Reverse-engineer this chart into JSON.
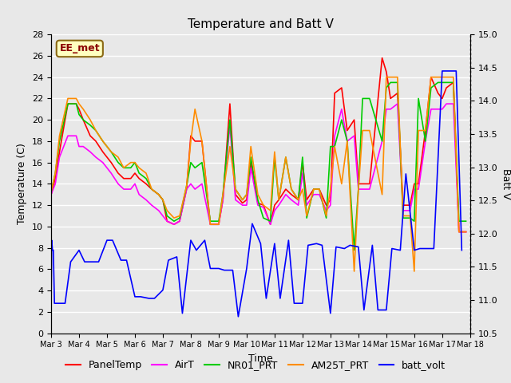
{
  "title": "Temperature and Batt V",
  "xlabel": "Time",
  "ylabel_left": "Temperature (C)",
  "ylabel_right": "Batt V",
  "annotation": "EE_met",
  "annotation_color": "#8B0000",
  "annotation_bg": "#FFFFC0",
  "annotation_border": "#8B6914",
  "xlim_days": [
    3,
    18
  ],
  "ylim_left": [
    0,
    28
  ],
  "ylim_right": [
    10.5,
    15.0
  ],
  "xtick_labels": [
    "Mar 3",
    "Mar 4",
    "Mar 5",
    "Mar 6",
    "Mar 7",
    "Mar 8",
    "Mar 9",
    "Mar 10",
    "Mar 11",
    "Mar 12",
    "Mar 13",
    "Mar 14",
    "Mar 15",
    "Mar 16",
    "Mar 17",
    "Mar 18"
  ],
  "xtick_positions": [
    3,
    4,
    5,
    6,
    7,
    8,
    9,
    10,
    11,
    12,
    13,
    14,
    15,
    16,
    17,
    18
  ],
  "yticks_left": [
    0,
    2,
    4,
    6,
    8,
    10,
    12,
    14,
    16,
    18,
    20,
    22,
    24,
    26,
    28
  ],
  "yticks_right": [
    10.5,
    11.0,
    11.5,
    12.0,
    12.5,
    13.0,
    13.5,
    14.0,
    14.5,
    15.0
  ],
  "series": {
    "PanelTemp": {
      "color": "#FF0000",
      "linewidth": 1.2,
      "x": [
        3.0,
        3.15,
        3.3,
        3.6,
        3.9,
        4.0,
        4.15,
        4.4,
        4.6,
        4.85,
        5.0,
        5.15,
        5.4,
        5.6,
        5.85,
        6.0,
        6.15,
        6.4,
        6.6,
        6.85,
        7.0,
        7.15,
        7.4,
        7.6,
        7.85,
        8.0,
        8.15,
        8.4,
        8.7,
        9.0,
        9.15,
        9.4,
        9.6,
        9.85,
        10.0,
        10.15,
        10.4,
        10.6,
        10.85,
        11.0,
        11.15,
        11.4,
        11.6,
        11.85,
        12.0,
        12.15,
        12.4,
        12.6,
        12.85,
        13.0,
        13.15,
        13.4,
        13.6,
        13.85,
        14.0,
        14.15,
        14.4,
        14.85,
        15.0,
        15.15,
        15.4,
        15.6,
        15.85,
        16.0,
        16.15,
        16.4,
        16.6,
        16.85,
        17.0,
        17.15,
        17.4,
        17.6,
        17.85
      ],
      "y": [
        13.0,
        14.5,
        17.0,
        21.5,
        21.5,
        21.0,
        20.0,
        18.5,
        18.0,
        17.0,
        16.5,
        16.0,
        15.0,
        14.5,
        14.5,
        15.0,
        14.5,
        14.0,
        13.5,
        13.0,
        12.5,
        10.5,
        10.2,
        10.5,
        13.5,
        18.5,
        18.0,
        18.0,
        10.2,
        10.2,
        12.5,
        21.5,
        13.0,
        12.2,
        12.5,
        16.0,
        12.2,
        12.0,
        10.2,
        12.0,
        12.5,
        13.5,
        13.0,
        12.5,
        16.0,
        12.5,
        13.5,
        13.5,
        12.0,
        12.5,
        22.5,
        23.0,
        19.0,
        20.0,
        14.0,
        14.0,
        14.0,
        25.8,
        24.5,
        22.0,
        22.5,
        12.0,
        12.0,
        14.0,
        14.0,
        19.0,
        24.0,
        22.5,
        22.0,
        23.0,
        23.5,
        9.5,
        9.5
      ]
    },
    "AirT": {
      "color": "#FF00FF",
      "linewidth": 1.2,
      "x": [
        3.0,
        3.15,
        3.3,
        3.6,
        3.9,
        4.0,
        4.15,
        4.4,
        4.6,
        4.85,
        5.0,
        5.15,
        5.4,
        5.6,
        5.85,
        6.0,
        6.15,
        6.4,
        6.6,
        6.85,
        7.0,
        7.15,
        7.4,
        7.6,
        7.85,
        8.0,
        8.15,
        8.4,
        8.7,
        9.0,
        9.15,
        9.4,
        9.6,
        9.85,
        10.0,
        10.15,
        10.4,
        10.6,
        10.85,
        11.0,
        11.15,
        11.4,
        11.6,
        11.85,
        12.0,
        12.15,
        12.4,
        12.6,
        12.85,
        13.0,
        13.15,
        13.4,
        13.6,
        13.85,
        14.0,
        14.15,
        14.4,
        14.85,
        15.0,
        15.15,
        15.4,
        15.6,
        15.85,
        16.0,
        16.15,
        16.4,
        16.6,
        16.85,
        17.0,
        17.15,
        17.4,
        17.6,
        17.85
      ],
      "y": [
        13.0,
        14.0,
        16.5,
        18.5,
        18.5,
        17.5,
        17.5,
        17.0,
        16.5,
        16.0,
        15.5,
        15.0,
        14.0,
        13.5,
        13.5,
        14.0,
        13.0,
        12.5,
        12.0,
        11.5,
        11.0,
        10.5,
        10.2,
        10.5,
        13.5,
        14.0,
        13.5,
        14.0,
        10.2,
        10.2,
        12.5,
        19.5,
        12.5,
        12.0,
        12.0,
        15.5,
        12.0,
        11.8,
        10.2,
        11.5,
        12.0,
        13.0,
        12.5,
        12.0,
        15.0,
        12.0,
        13.0,
        13.0,
        11.5,
        12.0,
        18.5,
        21.0,
        18.0,
        18.5,
        13.5,
        13.5,
        13.5,
        18.0,
        21.0,
        21.0,
        21.5,
        11.5,
        11.5,
        13.5,
        13.5,
        18.0,
        21.0,
        21.0,
        21.0,
        21.5,
        21.5,
        9.5,
        9.5
      ]
    },
    "NR01_PRT": {
      "color": "#00CC00",
      "linewidth": 1.2,
      "x": [
        3.0,
        3.15,
        3.3,
        3.6,
        3.9,
        4.0,
        4.15,
        4.4,
        4.6,
        4.85,
        5.0,
        5.15,
        5.4,
        5.6,
        5.85,
        6.0,
        6.15,
        6.4,
        6.6,
        6.85,
        7.0,
        7.15,
        7.4,
        7.6,
        7.85,
        8.0,
        8.15,
        8.4,
        8.7,
        9.0,
        9.15,
        9.4,
        9.6,
        9.85,
        10.0,
        10.15,
        10.4,
        10.6,
        10.85,
        11.0,
        11.15,
        11.4,
        11.6,
        11.85,
        12.0,
        12.15,
        12.4,
        12.6,
        12.85,
        13.0,
        13.15,
        13.4,
        13.6,
        13.85,
        14.0,
        14.15,
        14.4,
        14.85,
        15.0,
        15.15,
        15.4,
        15.6,
        15.85,
        16.0,
        16.15,
        16.4,
        16.6,
        16.85,
        17.0,
        17.15,
        17.4,
        17.6,
        17.85
      ],
      "y": [
        13.2,
        15.0,
        18.0,
        21.5,
        21.5,
        20.5,
        20.0,
        19.5,
        19.0,
        18.0,
        17.5,
        17.0,
        16.0,
        15.5,
        15.5,
        16.0,
        15.0,
        14.5,
        13.5,
        13.0,
        12.5,
        11.0,
        10.5,
        10.8,
        13.8,
        16.0,
        15.5,
        16.0,
        10.5,
        10.5,
        13.0,
        20.0,
        13.5,
        12.5,
        13.0,
        16.5,
        12.5,
        10.8,
        10.5,
        16.5,
        12.5,
        16.5,
        13.5,
        12.5,
        16.5,
        10.8,
        13.5,
        13.5,
        10.8,
        17.5,
        17.5,
        20.0,
        18.0,
        7.8,
        13.5,
        22.0,
        22.0,
        18.0,
        23.0,
        23.5,
        23.5,
        10.8,
        10.8,
        10.5,
        22.0,
        18.0,
        23.0,
        23.5,
        23.5,
        23.5,
        23.5,
        10.5,
        10.5
      ]
    },
    "AM25T_PRT": {
      "color": "#FF8C00",
      "linewidth": 1.2,
      "x": [
        3.0,
        3.15,
        3.3,
        3.6,
        3.9,
        4.0,
        4.15,
        4.4,
        4.6,
        4.85,
        5.0,
        5.15,
        5.4,
        5.6,
        5.85,
        6.0,
        6.15,
        6.4,
        6.6,
        6.85,
        7.0,
        7.15,
        7.4,
        7.6,
        7.85,
        8.0,
        8.15,
        8.4,
        8.7,
        9.0,
        9.15,
        9.4,
        9.6,
        9.85,
        10.0,
        10.15,
        10.4,
        10.6,
        10.85,
        11.0,
        11.15,
        11.4,
        11.6,
        11.85,
        12.0,
        12.15,
        12.4,
        12.6,
        12.85,
        13.0,
        13.15,
        13.4,
        13.6,
        13.85,
        14.0,
        14.15,
        14.4,
        14.85,
        15.0,
        15.15,
        15.4,
        15.6,
        15.85,
        16.0,
        16.15,
        16.4,
        16.6,
        16.85,
        17.0,
        17.15,
        17.4,
        17.6,
        17.85
      ],
      "y": [
        13.2,
        15.0,
        18.5,
        22.0,
        22.0,
        21.5,
        21.0,
        20.0,
        19.0,
        18.0,
        17.5,
        17.0,
        16.5,
        15.5,
        16.0,
        16.0,
        15.5,
        15.0,
        13.5,
        13.0,
        12.5,
        11.5,
        10.8,
        11.0,
        13.8,
        18.0,
        21.0,
        18.0,
        10.2,
        10.2,
        13.0,
        17.5,
        13.5,
        12.5,
        13.0,
        17.5,
        13.0,
        12.0,
        11.5,
        17.0,
        12.5,
        16.5,
        13.5,
        12.5,
        13.5,
        11.0,
        13.5,
        13.5,
        11.0,
        13.5,
        17.5,
        14.0,
        18.0,
        5.8,
        13.5,
        19.0,
        19.0,
        13.0,
        24.0,
        24.0,
        24.0,
        11.0,
        11.0,
        5.8,
        19.0,
        19.0,
        24.0,
        24.0,
        24.0,
        24.0,
        24.0,
        9.5,
        9.5
      ]
    },
    "batt_volt": {
      "color": "#0000FF",
      "linewidth": 1.2,
      "x": [
        3.0,
        3.02,
        3.05,
        3.08,
        3.12,
        3.3,
        3.5,
        3.7,
        4.0,
        4.2,
        4.5,
        4.7,
        5.0,
        5.2,
        5.5,
        5.7,
        6.0,
        6.2,
        6.5,
        6.7,
        7.0,
        7.2,
        7.5,
        7.7,
        8.0,
        8.2,
        8.5,
        8.7,
        9.0,
        9.2,
        9.5,
        9.7,
        10.0,
        10.2,
        10.5,
        10.7,
        11.0,
        11.2,
        11.5,
        11.7,
        12.0,
        12.2,
        12.5,
        12.7,
        13.0,
        13.2,
        13.5,
        13.7,
        14.0,
        14.2,
        14.5,
        14.7,
        15.0,
        15.2,
        15.5,
        15.7,
        16.0,
        16.2,
        16.5,
        16.7,
        17.0,
        17.2,
        17.5,
        17.7
      ],
      "y": [
        10.8,
        11.9,
        11.75,
        11.75,
        10.95,
        10.95,
        10.95,
        11.575,
        11.75,
        11.575,
        11.575,
        11.575,
        11.9,
        11.9,
        11.6,
        11.6,
        11.05,
        11.05,
        11.025,
        11.025,
        11.15,
        11.6,
        11.65,
        10.8,
        11.9,
        11.75,
        11.9,
        11.475,
        11.475,
        11.45,
        11.45,
        10.75,
        11.475,
        12.15,
        11.85,
        11.025,
        11.85,
        11.025,
        11.9,
        10.95,
        10.95,
        11.825,
        11.85,
        11.825,
        10.8,
        11.8,
        11.775,
        11.825,
        11.8,
        10.85,
        11.825,
        10.85,
        10.85,
        11.775,
        11.75,
        12.9,
        11.75,
        11.775,
        11.775,
        11.775,
        14.45,
        14.45,
        14.45,
        11.75
      ]
    }
  },
  "background_color": "#E8E8E8",
  "plot_bg_color": "#E8E8E8",
  "grid_color": "#FFFFFF",
  "title_fontsize": 11,
  "axis_fontsize": 9,
  "tick_fontsize": 8,
  "legend_fontsize": 9
}
